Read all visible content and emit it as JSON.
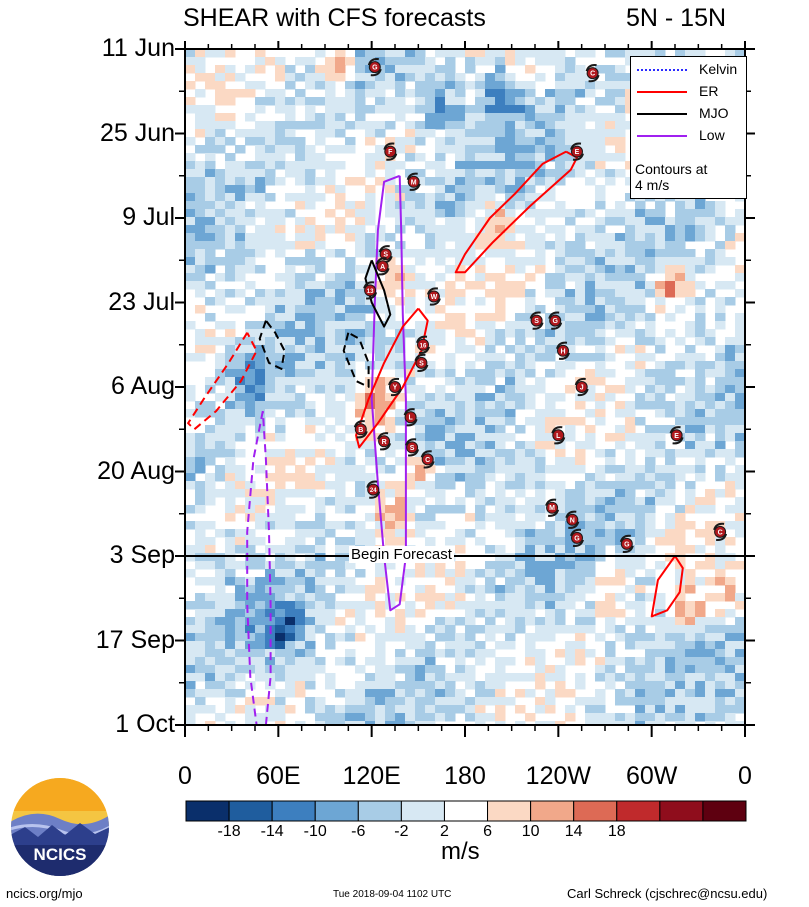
{
  "header": {
    "title": "SHEAR with CFS forecasts",
    "region": "5N - 15N"
  },
  "legend": {
    "items": [
      {
        "label": "Kelvin",
        "color": "#2b2bff",
        "style": "dotted"
      },
      {
        "label": "ER",
        "color": "#ff0000",
        "style": "solid"
      },
      {
        "label": "MJO",
        "color": "#000000",
        "style": "solid"
      },
      {
        "label": "Low",
        "color": "#a020f0",
        "style": "solid"
      }
    ],
    "note_line1": "Contours at",
    "note_line2": "4 m/s"
  },
  "forecast_label": "Begin Forecast",
  "colorbar": {
    "labels": [
      "-18",
      "-14",
      "-10",
      "-6",
      "-2",
      "2",
      "6",
      "10",
      "14",
      "18"
    ],
    "colors": [
      "#0a2f6b",
      "#1f5d9e",
      "#3d7fbf",
      "#6da6d4",
      "#a8cce6",
      "#d7e8f3",
      "#ffffff",
      "#fbd9c4",
      "#f1a88a",
      "#dd6a55",
      "#c02a2c",
      "#8f0d1c",
      "#5e0010"
    ],
    "units": "m/s"
  },
  "footer": {
    "left": "ncics.org/mjo",
    "center": "Tue 2018-09-04 1102 UTC",
    "right": "Carl Schreck (cjschrec@ncsu.edu)"
  },
  "logo_text": "NCICS",
  "chart_data": {
    "type": "heatmap",
    "title": "SHEAR with CFS forecasts",
    "subtitle": "5N - 15N",
    "x_ticks": [
      "0",
      "60E",
      "120E",
      "180",
      "120W",
      "60W",
      "0"
    ],
    "x_tick_values": [
      0,
      60,
      120,
      180,
      240,
      300,
      360
    ],
    "xlim": [
      0,
      360
    ],
    "y_ticks": [
      "11 Jun",
      "25 Jun",
      "9 Jul",
      "23 Jul",
      "6 Aug",
      "20 Aug",
      "3 Sep",
      "17 Sep",
      "1 Oct"
    ],
    "y_tick_days": [
      0,
      14,
      28,
      42,
      56,
      70,
      84,
      98,
      112
    ],
    "forecast_start": "3 Sep",
    "colorbar_units": "m/s",
    "contour_interval": "4 m/s",
    "color_levels": [
      -18,
      -14,
      -10,
      -6,
      -2,
      2,
      6,
      10,
      14,
      18
    ],
    "shading_features": [
      {
        "lon": 95,
        "day": 2,
        "value": 14
      },
      {
        "lon": 120,
        "day": 58,
        "value": 16
      },
      {
        "lon": 130,
        "day": 38,
        "value": 12
      },
      {
        "lon": 145,
        "day": 69,
        "value": 14
      },
      {
        "lon": 128,
        "day": 76,
        "value": 12
      },
      {
        "lon": 197,
        "day": 28,
        "value": 10
      },
      {
        "lon": 308,
        "day": 38,
        "value": 16
      },
      {
        "lon": 322,
        "day": 92,
        "value": 12
      },
      {
        "lon": 345,
        "day": 90,
        "value": 10
      },
      {
        "lon": 270,
        "day": 88,
        "value": 10
      },
      {
        "lon": 200,
        "day": 7,
        "value": -14
      },
      {
        "lon": 40,
        "day": 55,
        "value": -12
      },
      {
        "lon": 60,
        "day": 95,
        "value": -14
      },
      {
        "lon": 300,
        "day": 55,
        "value": -6
      },
      {
        "lon": 160,
        "day": 9,
        "value": -8
      }
    ],
    "storm_markers": [
      {
        "label": "G",
        "lon": 122,
        "day": 3
      },
      {
        "label": "C",
        "lon": 262,
        "day": 4
      },
      {
        "label": "F",
        "lon": 132,
        "day": 17
      },
      {
        "label": "M",
        "lon": 147,
        "day": 22
      },
      {
        "label": "S",
        "lon": 129,
        "day": 34
      },
      {
        "label": "A",
        "lon": 127,
        "day": 36
      },
      {
        "label": "13",
        "lon": 119,
        "day": 40
      },
      {
        "label": "W",
        "lon": 160,
        "day": 41
      },
      {
        "label": "S",
        "lon": 226,
        "day": 45
      },
      {
        "label": "G",
        "lon": 238,
        "day": 45
      },
      {
        "label": "16",
        "lon": 153,
        "day": 49
      },
      {
        "label": "S",
        "lon": 152,
        "day": 52
      },
      {
        "label": "H",
        "lon": 243,
        "day": 50
      },
      {
        "label": "Y",
        "lon": 135,
        "day": 56
      },
      {
        "label": "L",
        "lon": 145,
        "day": 61
      },
      {
        "label": "B",
        "lon": 113,
        "day": 63
      },
      {
        "label": "R",
        "lon": 128,
        "day": 65
      },
      {
        "label": "S",
        "lon": 146,
        "day": 66
      },
      {
        "label": "C",
        "lon": 156,
        "day": 68
      },
      {
        "label": "24",
        "lon": 121,
        "day": 73
      },
      {
        "label": "M",
        "lon": 236,
        "day": 76
      },
      {
        "label": "N",
        "lon": 249,
        "day": 78
      },
      {
        "label": "G",
        "lon": 252,
        "day": 81
      },
      {
        "label": "G",
        "lon": 284,
        "day": 82
      },
      {
        "label": "C",
        "lon": 344,
        "day": 80
      },
      {
        "label": "J",
        "lon": 255,
        "day": 56
      },
      {
        "label": "L",
        "lon": 240,
        "day": 64
      },
      {
        "label": "E",
        "lon": 316,
        "day": 64
      },
      {
        "label": "E",
        "lon": 252,
        "day": 17
      }
    ],
    "contours": [
      {
        "series": "Low",
        "style": "solid",
        "path": [
          [
            138,
            21
          ],
          [
            128,
            22
          ],
          [
            124,
            30
          ],
          [
            122,
            42
          ],
          [
            120,
            58
          ],
          [
            124,
            72
          ],
          [
            128,
            84
          ],
          [
            132,
            93
          ],
          [
            138,
            92
          ],
          [
            142,
            84
          ],
          [
            142,
            70
          ],
          [
            142,
            58
          ],
          [
            140,
            44
          ],
          [
            139,
            30
          ],
          [
            138,
            21
          ]
        ]
      },
      {
        "series": "Low",
        "style": "dashed",
        "path": [
          [
            50,
            60
          ],
          [
            44,
            68
          ],
          [
            40,
            80
          ],
          [
            40,
            92
          ],
          [
            42,
            104
          ],
          [
            46,
            112
          ],
          [
            52,
            112
          ],
          [
            55,
            104
          ],
          [
            55,
            92
          ],
          [
            54,
            80
          ],
          [
            52,
            68
          ],
          [
            50,
            60
          ]
        ]
      },
      {
        "series": "MJO",
        "style": "solid",
        "path": [
          [
            120,
            35
          ],
          [
            116,
            38
          ],
          [
            120,
            42
          ],
          [
            128,
            46
          ],
          [
            132,
            44
          ],
          [
            128,
            40
          ],
          [
            120,
            35
          ]
        ]
      },
      {
        "series": "MJO",
        "style": "dashed",
        "path": [
          [
            52,
            45
          ],
          [
            48,
            48
          ],
          [
            54,
            52
          ],
          [
            62,
            53
          ],
          [
            64,
            50
          ],
          [
            58,
            47
          ],
          [
            52,
            45
          ]
        ]
      },
      {
        "series": "MJO",
        "style": "dashed",
        "path": [
          [
            105,
            47
          ],
          [
            102,
            50
          ],
          [
            110,
            55
          ],
          [
            118,
            56
          ],
          [
            118,
            52
          ],
          [
            112,
            48
          ],
          [
            105,
            47
          ]
        ]
      },
      {
        "series": "ER",
        "style": "solid",
        "path": [
          [
            150,
            43
          ],
          [
            140,
            46
          ],
          [
            128,
            52
          ],
          [
            118,
            58
          ],
          [
            110,
            64
          ],
          [
            112,
            66
          ],
          [
            124,
            62
          ],
          [
            140,
            56
          ],
          [
            152,
            50
          ],
          [
            156,
            45
          ],
          [
            150,
            43
          ]
        ]
      },
      {
        "series": "ER",
        "style": "solid",
        "path": [
          [
            245,
            17
          ],
          [
            230,
            19
          ],
          [
            212,
            24
          ],
          [
            196,
            28
          ],
          [
            180,
            34
          ],
          [
            174,
            37
          ],
          [
            180,
            37
          ],
          [
            198,
            32
          ],
          [
            222,
            26
          ],
          [
            248,
            20
          ],
          [
            252,
            18
          ],
          [
            245,
            17
          ]
        ]
      },
      {
        "series": "ER",
        "style": "solid",
        "path": [
          [
            315,
            84
          ],
          [
            304,
            88
          ],
          [
            300,
            94
          ],
          [
            310,
            93
          ],
          [
            318,
            90
          ],
          [
            320,
            86
          ],
          [
            315,
            84
          ]
        ]
      },
      {
        "series": "ER",
        "style": "dashed",
        "path": [
          [
            40,
            47
          ],
          [
            28,
            52
          ],
          [
            12,
            58
          ],
          [
            2,
            62
          ],
          [
            6,
            63
          ],
          [
            20,
            60
          ],
          [
            36,
            55
          ],
          [
            46,
            50
          ],
          [
            40,
            47
          ]
        ]
      }
    ]
  }
}
